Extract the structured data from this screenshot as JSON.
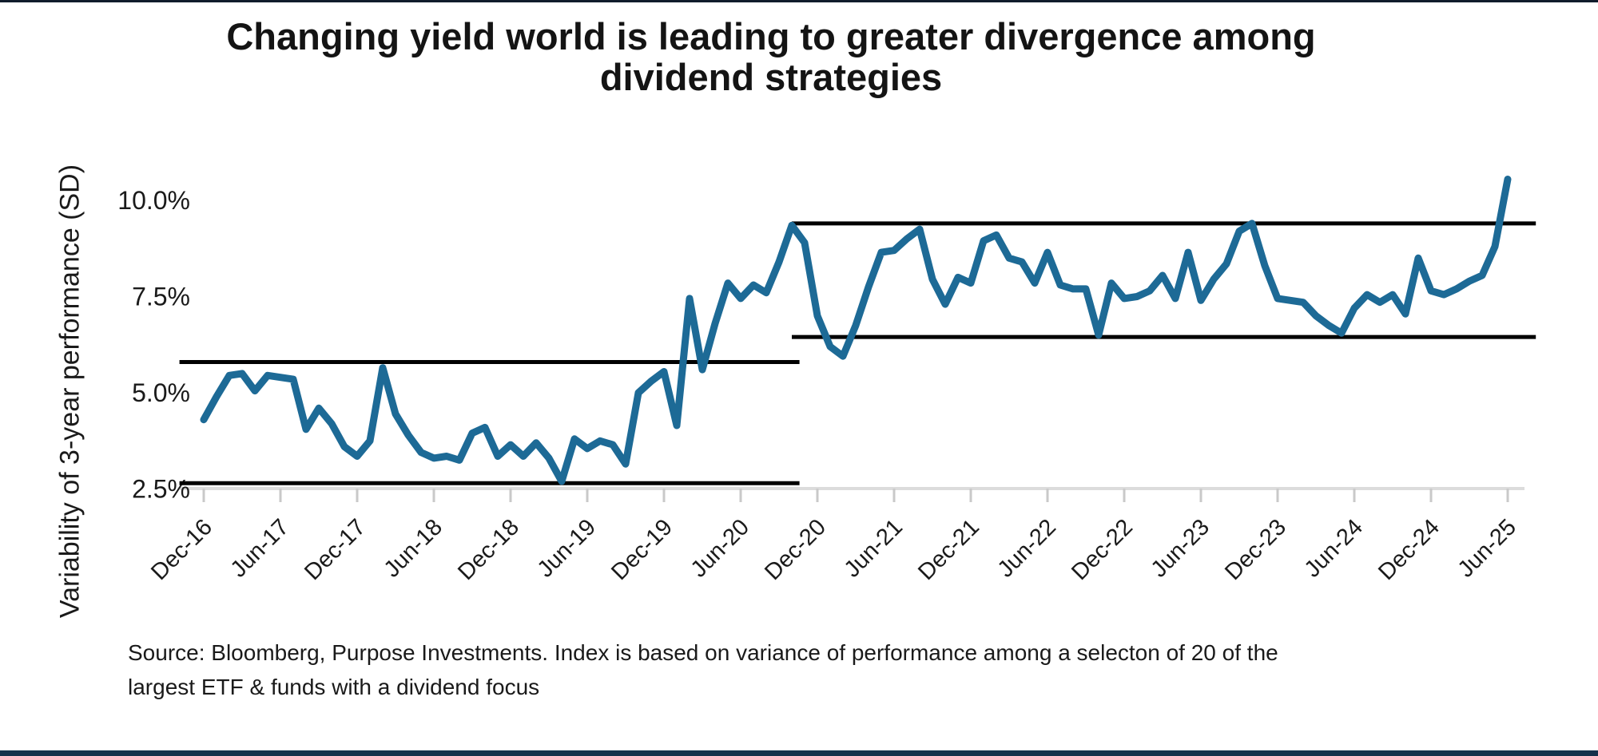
{
  "header": {
    "title_line1": "Changing yield world is leading to greater divergence among",
    "title_line2": "dividend strategies"
  },
  "footer": {
    "source_line1": "Source: Bloomberg, Purpose Investments. Index is based on variance of performance among a selecton of 20 of the",
    "source_line2": "largest ETF & funds with a dividend focus"
  },
  "chart_data": {
    "type": "line",
    "title": "Changing yield world is leading to greater divergence among dividend strategies",
    "ylabel": "Variability of 3-year performance (SD)",
    "xlabel": "",
    "grid": "off",
    "legend": "none",
    "frequency": "monthly",
    "x_start_label": "Dec-16",
    "x_end_label": "Jun-25",
    "x_tick_labels": [
      "Dec-16",
      "Jun-17",
      "Dec-17",
      "Jun-18",
      "Dec-18",
      "Jun-19",
      "Dec-19",
      "Jun-20",
      "Dec-20",
      "Jun-21",
      "Dec-21",
      "Jun-22",
      "Dec-22",
      "Jun-23",
      "Dec-23",
      "Jun-24",
      "Dec-24",
      "Jun-25"
    ],
    "y_ticks": [
      "10.0%",
      "7.5%",
      "5.0%",
      "2.5%"
    ],
    "y_tick_values": [
      10.0,
      7.5,
      5.0,
      2.5
    ],
    "y_axis_labeled_range": [
      2.5,
      10.0
    ],
    "line_color": "#1d6a96",
    "reference_line_color": "#000000",
    "values": [
      4.3,
      4.9,
      5.45,
      5.5,
      5.05,
      5.45,
      5.4,
      5.35,
      4.05,
      4.6,
      4.2,
      3.6,
      3.35,
      3.75,
      5.65,
      4.45,
      3.9,
      3.45,
      3.3,
      3.35,
      3.25,
      3.95,
      4.1,
      3.35,
      3.65,
      3.35,
      3.7,
      3.3,
      2.7,
      3.8,
      3.55,
      3.75,
      3.65,
      3.15,
      5.0,
      5.3,
      5.55,
      4.15,
      7.45,
      5.6,
      6.8,
      7.85,
      7.45,
      7.8,
      7.6,
      8.4,
      9.35,
      8.9,
      7.0,
      6.2,
      5.95,
      6.75,
      7.75,
      8.65,
      8.7,
      9.0,
      9.25,
      7.95,
      7.3,
      8.0,
      7.85,
      8.95,
      9.1,
      8.5,
      8.4,
      7.85,
      8.65,
      7.8,
      7.7,
      7.7,
      6.5,
      7.85,
      7.45,
      7.5,
      7.65,
      8.05,
      7.45,
      8.65,
      7.4,
      7.95,
      8.35,
      9.2,
      9.4,
      8.3,
      7.45,
      7.4,
      7.35,
      7.0,
      6.75,
      6.55,
      7.2,
      7.55,
      7.35,
      7.55,
      7.05,
      8.5,
      7.65,
      7.55,
      7.7,
      7.9,
      8.05,
      8.8,
      10.55
    ],
    "reference_bands": [
      {
        "covers": "Dec-16 to Oct-20",
        "top_value": 5.8,
        "bottom_value": 2.65,
        "from_month": -1.9,
        "to_month": 46.6
      },
      {
        "covers": "Oct-20 to Jun-25",
        "top_value": 9.4,
        "bottom_value": 6.45,
        "from_month": 46.0,
        "to_month": 104.2
      }
    ]
  }
}
